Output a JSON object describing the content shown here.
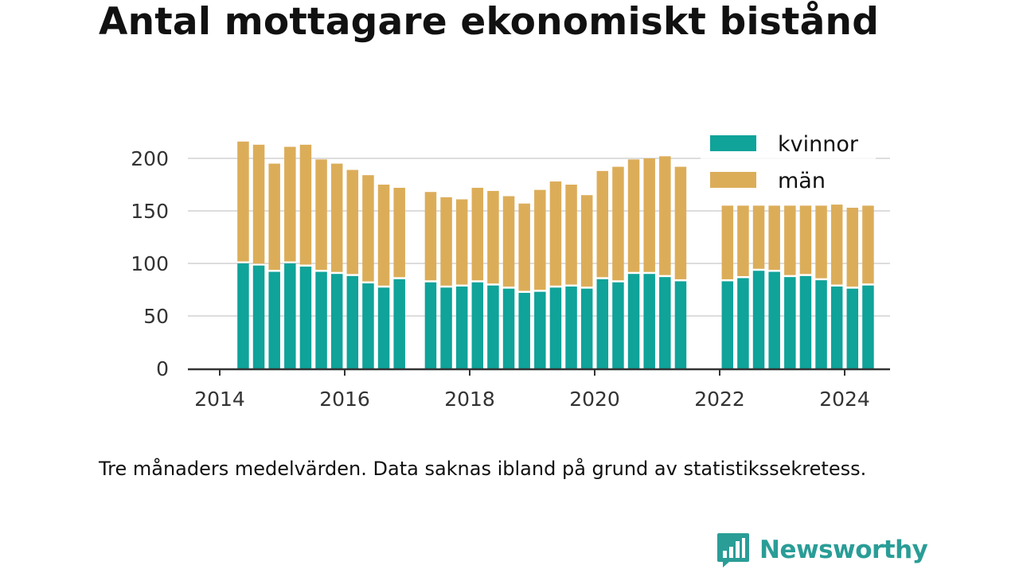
{
  "title": "Antal mottagare ekonomiskt bistånd",
  "note": "Tre månaders medelvärden. Data saknas ibland på grund av statistikssekretess.",
  "brand": {
    "name": "Newsworthy",
    "icon": "bar-chart-speech-bubble-icon"
  },
  "colors": {
    "kvinnor": "#0fa39a",
    "man": "#dcad59",
    "axis": "#333333",
    "grid": "#dddddd",
    "brand": "#2a9d97"
  },
  "chart_data": {
    "type": "bar",
    "stacked": true,
    "title": "Antal mottagare ekonomiskt bistånd",
    "xlabel": "",
    "ylabel": "",
    "ylim": [
      0,
      220
    ],
    "xlim": [
      2013.8,
      2025.2
    ],
    "x_ticks": [
      "2014",
      "2016",
      "2018",
      "2020",
      "2022",
      "2024"
    ],
    "y_ticks": [
      "0",
      "50",
      "100",
      "150",
      "200"
    ],
    "grid": "horizontal",
    "legend_position": "top-right",
    "x": [
      2014.375,
      2014.625,
      2014.875,
      2015.125,
      2015.375,
      2015.625,
      2015.875,
      2016.125,
      2016.375,
      2016.625,
      2016.875,
      2017.375,
      2017.625,
      2017.875,
      2018.125,
      2018.375,
      2018.625,
      2018.875,
      2019.125,
      2019.375,
      2019.625,
      2019.875,
      2020.125,
      2020.375,
      2020.625,
      2020.875,
      2021.125,
      2021.375,
      2022.125,
      2022.375,
      2022.625,
      2022.875,
      2023.125,
      2023.375,
      2023.625,
      2023.875,
      2024.125,
      2024.375
    ],
    "series": [
      {
        "name": "kvinnor",
        "values": [
          100,
          98,
          92,
          100,
          97,
          92,
          90,
          88,
          81,
          77,
          85,
          82,
          77,
          78,
          82,
          79,
          76,
          72,
          73,
          77,
          78,
          76,
          85,
          82,
          90,
          90,
          87,
          83,
          83,
          86,
          93,
          92,
          87,
          88,
          84,
          78,
          76,
          79
        ]
      },
      {
        "name": "män",
        "values": [
          116,
          115,
          103,
          111,
          116,
          107,
          105,
          101,
          103,
          98,
          87,
          86,
          86,
          83,
          90,
          90,
          88,
          85,
          97,
          101,
          97,
          89,
          103,
          110,
          109,
          110,
          115,
          109,
          72,
          69,
          62,
          63,
          68,
          67,
          71,
          78,
          77,
          76
        ]
      }
    ]
  }
}
